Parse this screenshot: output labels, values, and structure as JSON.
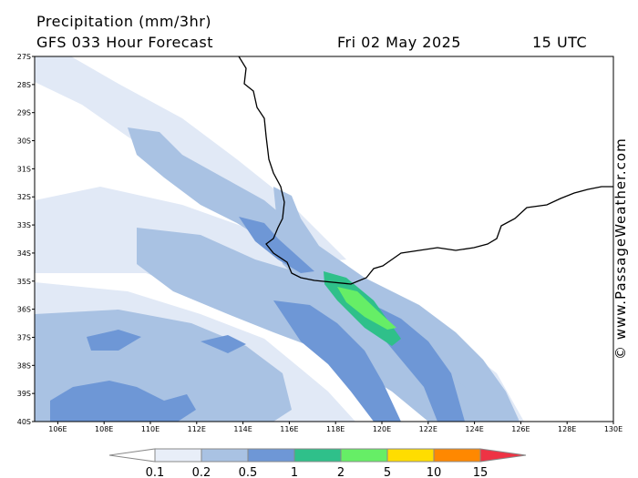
{
  "header": {
    "title": "Precipitation (mm/3hr)",
    "subtitle": "GFS 033 Hour Forecast",
    "date": "Fri 02 May 2025",
    "time": "15 UTC"
  },
  "credit": "© www.PassageWeather.com",
  "map": {
    "lat_labels": [
      "27S",
      "28S",
      "29S",
      "30S",
      "31S",
      "32S",
      "33S",
      "34S",
      "35S",
      "36S",
      "37S",
      "38S",
      "39S",
      "40S"
    ],
    "lon_labels": [
      "106E",
      "108E",
      "110E",
      "112E",
      "114E",
      "116E",
      "118E",
      "120E",
      "122E",
      "124E",
      "126E",
      "128E",
      "130E"
    ],
    "extent": {
      "lon_min": 105,
      "lon_max": 130,
      "lat_min": -40,
      "lat_max": -27
    }
  },
  "legend": {
    "labels": [
      "0.1",
      "0.2",
      "0.5",
      "1",
      "2",
      "5",
      "10",
      "15"
    ],
    "colors": [
      "#e8eef8",
      "#a9c2e3",
      "#6e97d6",
      "#2fc08a",
      "#66ee66",
      "#ffdd00",
      "#ff8800",
      "#ee3344"
    ]
  }
}
